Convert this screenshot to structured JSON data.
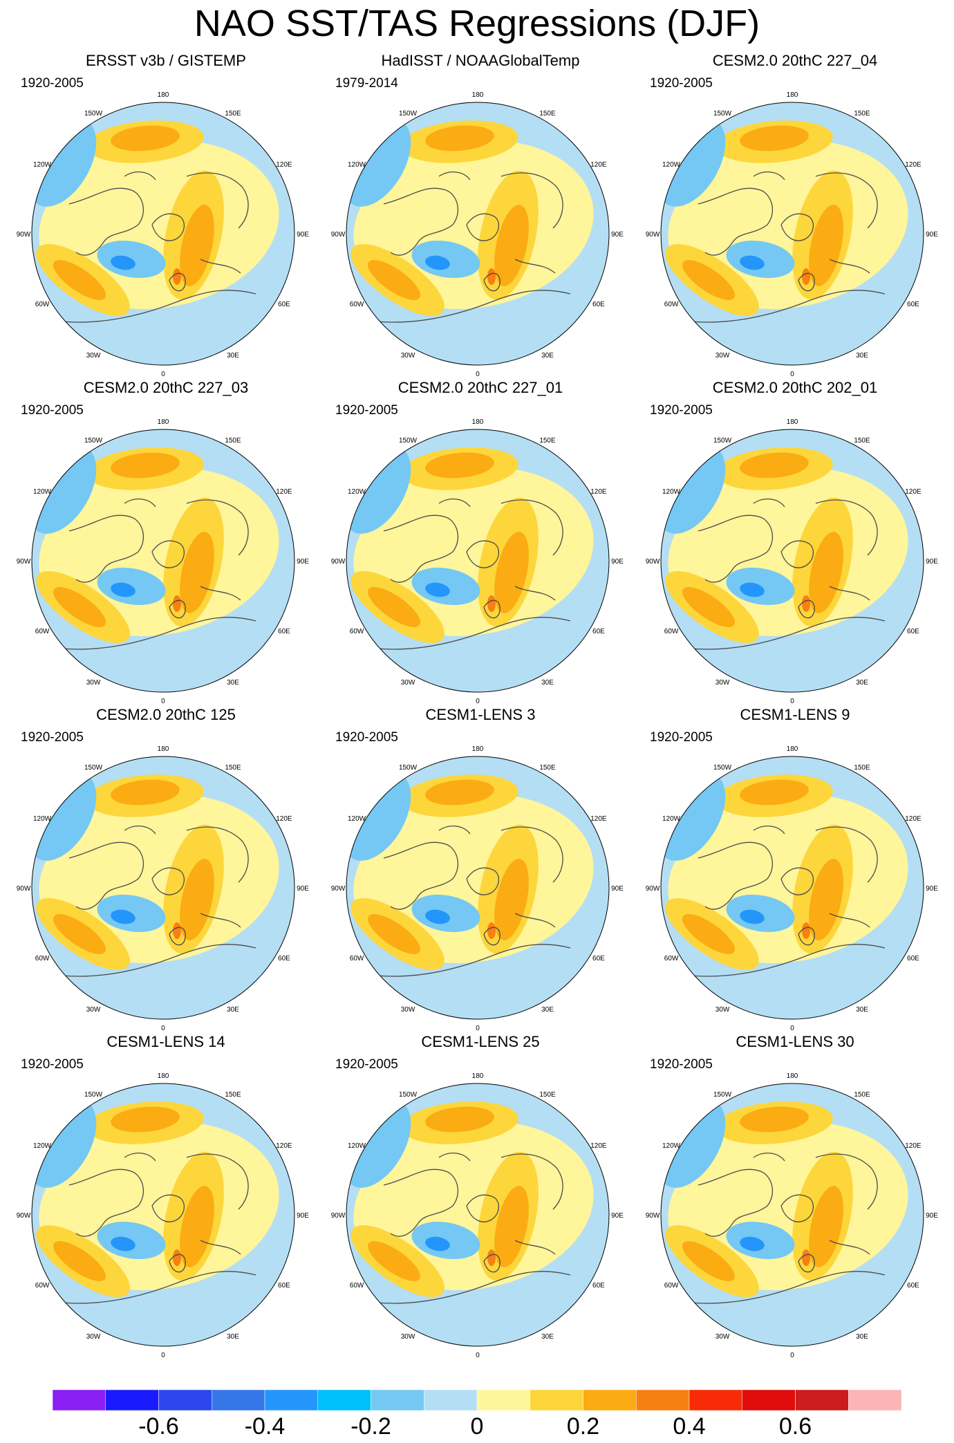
{
  "figure": {
    "title": "NAO SST/TAS Regressions (DJF)"
  },
  "longitude_labels": [
    "180",
    "150E",
    "120E",
    "90E",
    "60E",
    "30E",
    "0",
    "30W",
    "60W",
    "90W",
    "120W",
    "150W"
  ],
  "panels": [
    {
      "title": "ERSST v3b / GISTEMP",
      "period": "1920-2005"
    },
    {
      "title": "HadISST / NOAAGlobalTemp",
      "period": "1979-2014"
    },
    {
      "title": "CESM2.0 20thC 227_04",
      "period": "1920-2005"
    },
    {
      "title": "CESM2.0 20thC 227_03",
      "period": "1920-2005"
    },
    {
      "title": "CESM2.0 20thC 227_01",
      "period": "1920-2005"
    },
    {
      "title": "CESM2.0 20thC 202_01",
      "period": "1920-2005"
    },
    {
      "title": "CESM2.0 20thC 125",
      "period": "1920-2005"
    },
    {
      "title": "CESM1-LENS 3",
      "period": "1920-2005"
    },
    {
      "title": "CESM1-LENS 9",
      "period": "1920-2005"
    },
    {
      "title": "CESM1-LENS 14",
      "period": "1920-2005"
    },
    {
      "title": "CESM1-LENS 25",
      "period": "1920-2005"
    },
    {
      "title": "CESM1-LENS 30",
      "period": "1920-2005"
    }
  ],
  "colorbar": {
    "colors": [
      "#8a1ff2",
      "#1a1aff",
      "#2e46ee",
      "#3577e8",
      "#2496fb",
      "#00c0fb",
      "#74c8f3",
      "#b4def4",
      "#fff59b",
      "#fdd63b",
      "#fbac12",
      "#f87f11",
      "#f72b07",
      "#e10c0c",
      "#cc1c1c",
      "#fcb4b4"
    ],
    "labels": [
      "-0.6",
      "-0.4",
      "-0.2",
      "0",
      "0.2",
      "0.4",
      "0.6"
    ]
  },
  "map_colors": {
    "ocean_base": "#b4def4",
    "neutral_pos": "#fff59b",
    "pos_medium": "#fdd63b",
    "pos_strong": "#fbac12",
    "pos_very": "#f87f11",
    "neg_light": "#74c8f3",
    "neg_medium": "#2496fb",
    "coast": "#4a4a4a"
  }
}
